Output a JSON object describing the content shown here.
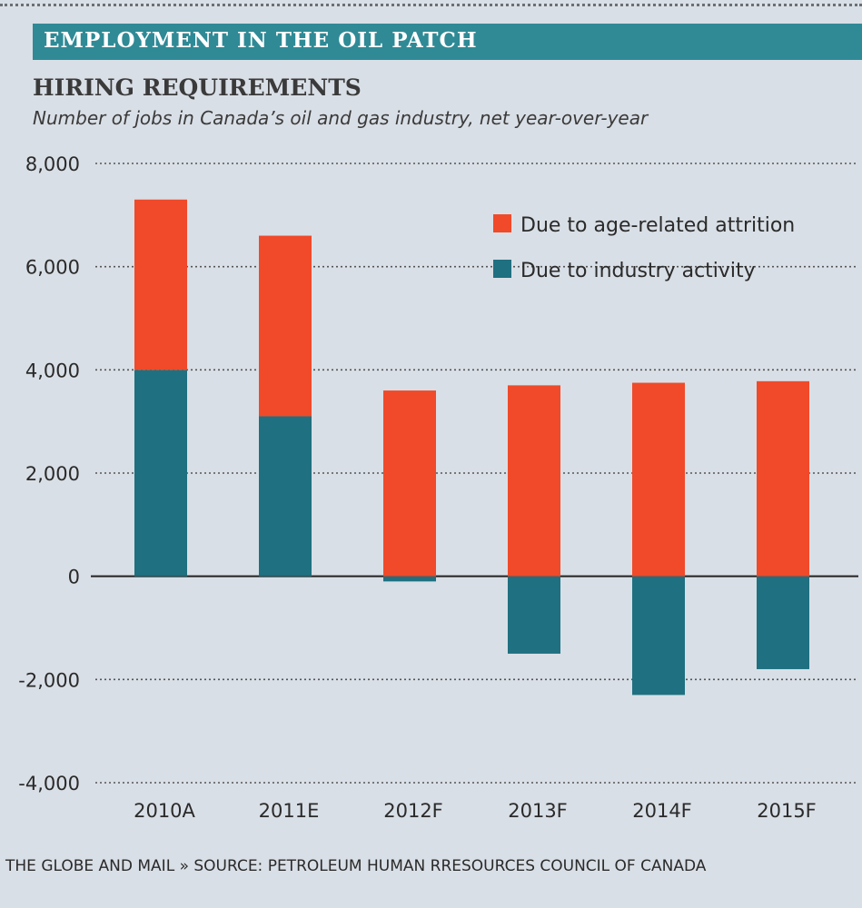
{
  "header": {
    "banner": "EMPLOYMENT IN THE OIL PATCH"
  },
  "chart_data": {
    "type": "bar",
    "stacked": true,
    "title": "HIRING REQUIREMENTS",
    "subtitle": "Number of jobs in Canada’s oil and gas industry, net year-over-year",
    "categories": [
      "2010A",
      "2011E",
      "2012F",
      "2013F",
      "2014F",
      "2015F"
    ],
    "series": [
      {
        "name": "Due to industry activity",
        "color": "#1f7080",
        "values": [
          4000,
          3100,
          -100,
          -1500,
          -2300,
          -1800
        ]
      },
      {
        "name": "Due to age-related attrition",
        "color": "#f04a2a",
        "values": [
          3300,
          3500,
          3600,
          3700,
          3750,
          3780
        ]
      }
    ],
    "legend_order": [
      "Due to age-related attrition",
      "Due to industry activity"
    ],
    "ylim": [
      -4000,
      8000
    ],
    "yticks": [
      8000,
      6000,
      4000,
      2000,
      0,
      -2000,
      -4000
    ],
    "ytick_labels": [
      "8,000",
      "6,000",
      "4,000",
      "2,000",
      "0",
      "-2,000",
      "-4,000"
    ],
    "legend_position": "top-right",
    "grid": "dotted",
    "xlabel": "",
    "ylabel": ""
  },
  "footer": {
    "text": "THE GLOBE AND MAIL » SOURCE: PETROLEUM HUMAN RRESOURCES COUNCIL OF CANADA"
  }
}
